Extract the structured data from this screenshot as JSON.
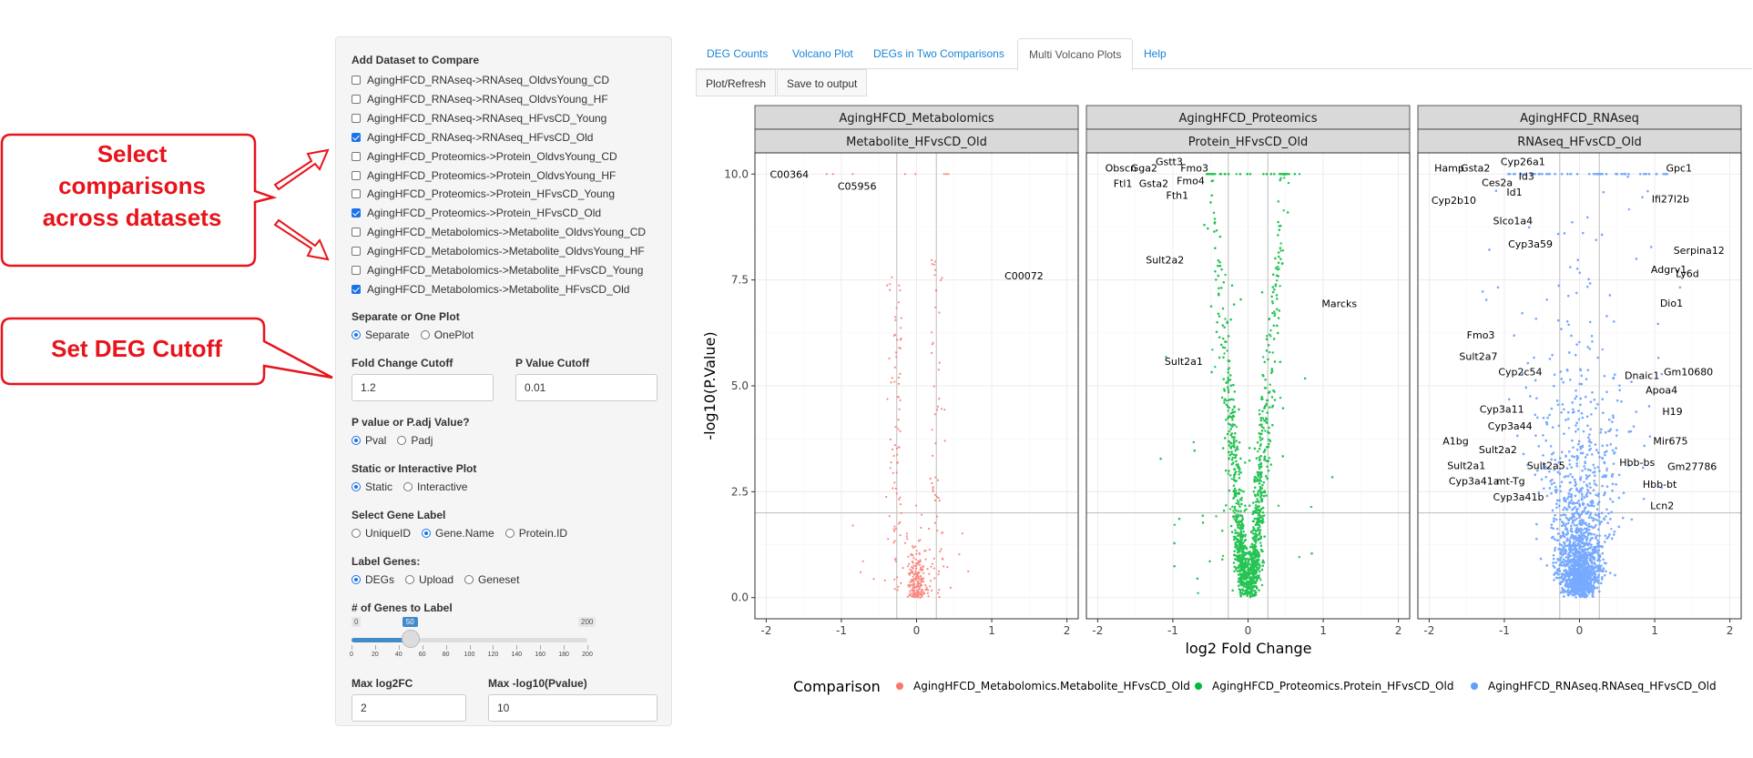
{
  "annotations": {
    "callout1_lines": [
      "Select",
      "comparisons",
      "across datasets"
    ],
    "callout2_text": "Set DEG Cutoff"
  },
  "sidebar": {
    "dataset_title": "Add Dataset to Compare",
    "datasets": [
      {
        "label": "AgingHFCD_RNAseq->RNAseq_OldvsYoung_CD",
        "checked": false
      },
      {
        "label": "AgingHFCD_RNAseq->RNAseq_OldvsYoung_HF",
        "checked": false
      },
      {
        "label": "AgingHFCD_RNAseq->RNAseq_HFvsCD_Young",
        "checked": false
      },
      {
        "label": "AgingHFCD_RNAseq->RNAseq_HFvsCD_Old",
        "checked": true
      },
      {
        "label": "AgingHFCD_Proteomics->Protein_OldvsYoung_CD",
        "checked": false
      },
      {
        "label": "AgingHFCD_Proteomics->Protein_OldvsYoung_HF",
        "checked": false
      },
      {
        "label": "AgingHFCD_Proteomics->Protein_HFvsCD_Young",
        "checked": false
      },
      {
        "label": "AgingHFCD_Proteomics->Protein_HFvsCD_Old",
        "checked": true
      },
      {
        "label": "AgingHFCD_Metabolomics->Metabolite_OldvsYoung_CD",
        "checked": false
      },
      {
        "label": "AgingHFCD_Metabolomics->Metabolite_OldvsYoung_HF",
        "checked": false
      },
      {
        "label": "AgingHFCD_Metabolomics->Metabolite_HFvsCD_Young",
        "checked": false
      },
      {
        "label": "AgingHFCD_Metabolomics->Metabolite_HFvsCD_Old",
        "checked": true
      }
    ],
    "separate_title": "Separate or One Plot",
    "separate_options": [
      "Separate",
      "OnePlot"
    ],
    "separate_selected": 0,
    "fc_label": "Fold Change Cutoff",
    "fc_value": "1.2",
    "pval_label": "P Value Cutoff",
    "pval_value": "0.01",
    "ptype_title": "P value or P.adj Value?",
    "ptype_options": [
      "Pval",
      "Padj"
    ],
    "ptype_selected": 0,
    "static_title": "Static or Interactive Plot",
    "static_options": [
      "Static",
      "Interactive"
    ],
    "static_selected": 0,
    "genelabel_title": "Select Gene Label",
    "genelabel_options": [
      "UniqueID",
      "Gene.Name",
      "Protein.ID"
    ],
    "genelabel_selected": 1,
    "labelgenes_title": "Label Genes:",
    "labelgenes_options": [
      "DEGs",
      "Upload",
      "Geneset"
    ],
    "labelgenes_selected": 0,
    "numgenes_title": "# of Genes to Label",
    "slider_min": "0",
    "slider_max": "200",
    "slider_value": 50,
    "slider_value_text": "50",
    "slider_ticks": [
      "0",
      "20",
      "40",
      "60",
      "80",
      "100",
      "120",
      "140",
      "160",
      "180",
      "200"
    ],
    "maxfc_label": "Max log2FC",
    "maxfc_value": "2",
    "maxp_label": "Max -log10(Pvalue)",
    "maxp_value": "10"
  },
  "tabs": [
    "DEG Counts",
    "Volcano Plot",
    "DEGs in Two Comparisons",
    "Multi Volcano Plots",
    "Help"
  ],
  "active_tab": 3,
  "buttons": {
    "refresh": "Plot/Refresh",
    "save": "Save to output"
  },
  "chart_data": {
    "type": "scatter",
    "xlabel": "log2 Fold Change",
    "ylabel": "-log10(P.Value)",
    "xlim": [
      -2.15,
      2.15
    ],
    "ylim": [
      -0.5,
      10.5
    ],
    "x_ticks": [
      "-2",
      "-1",
      "0",
      "1",
      "2"
    ],
    "y_ticks": [
      "0.0",
      "2.5",
      "5.0",
      "7.5",
      "10.0"
    ],
    "fc_cutoff_log2": 0.263,
    "p_cutoff_line": 2,
    "legend_title": "Comparison",
    "legend_position": "bottom",
    "panels": [
      {
        "dataset": "AgingHFCD_Metabolomics",
        "comparison": "Metabolite_HFvsCD_Old",
        "legend": "AgingHFCD_Metabolomics.Metabolite_HFvsCD_Old",
        "color": "#F8766D",
        "n_points": 380,
        "labels": [
          {
            "text": "C00364",
            "x": -1.95,
            "y": 10.0
          },
          {
            "text": "C05956",
            "x": -1.05,
            "y": 9.72
          },
          {
            "text": "C00072",
            "x": 1.17,
            "y": 7.6
          }
        ]
      },
      {
        "dataset": "AgingHFCD_Proteomics",
        "comparison": "Protein_HFvsCD_Old",
        "legend": "AgingHFCD_Proteomics.Protein_HFvsCD_Old",
        "color": "#00BA38",
        "n_points": 3500,
        "labels": [
          {
            "text": "Obscn",
            "x": -1.9,
            "y": 10.15
          },
          {
            "text": "Gga2",
            "x": -1.56,
            "y": 10.15
          },
          {
            "text": "Gstt3",
            "x": -1.23,
            "y": 10.3
          },
          {
            "text": "Fmo3",
            "x": -0.9,
            "y": 10.15
          },
          {
            "text": "Ftl1",
            "x": -1.79,
            "y": 9.78
          },
          {
            "text": "Gsta2",
            "x": -1.45,
            "y": 9.78
          },
          {
            "text": "Fmo4",
            "x": -0.95,
            "y": 9.85
          },
          {
            "text": "Fth1",
            "x": -1.09,
            "y": 9.5
          },
          {
            "text": "Sult2a2",
            "x": -1.36,
            "y": 7.98
          },
          {
            "text": "Marcks",
            "x": 0.98,
            "y": 6.94
          },
          {
            "text": "Sult2a1",
            "x": -1.11,
            "y": 5.58
          }
        ]
      },
      {
        "dataset": "AgingHFCD_RNAseq",
        "comparison": "RNAseq_HFvsCD_Old",
        "legend": "AgingHFCD_RNAseq.RNAseq_HFvsCD_Old",
        "color": "#619CFF",
        "n_points": 9000,
        "labels": [
          {
            "text": "Hamp",
            "x": -1.93,
            "y": 10.15
          },
          {
            "text": "Gsta2",
            "x": -1.58,
            "y": 10.15
          },
          {
            "text": "Cyp26a1",
            "x": -1.05,
            "y": 10.3
          },
          {
            "text": "Id3",
            "x": -0.81,
            "y": 9.95
          },
          {
            "text": "Ces2a",
            "x": -1.3,
            "y": 9.8
          },
          {
            "text": "Id1",
            "x": -0.97,
            "y": 9.58
          },
          {
            "text": "Cyp2b10",
            "x": -1.97,
            "y": 9.38
          },
          {
            "text": "Gpc1",
            "x": 1.15,
            "y": 10.15
          },
          {
            "text": "Ifi27l2b",
            "x": 0.96,
            "y": 9.42
          },
          {
            "text": "Slco1a4",
            "x": -1.15,
            "y": 8.9
          },
          {
            "text": "Cyp3a59",
            "x": -0.95,
            "y": 8.35
          },
          {
            "text": "Serpina12",
            "x": 1.25,
            "y": 8.2
          },
          {
            "text": "Adgrv1",
            "x": 0.95,
            "y": 7.75
          },
          {
            "text": "Ly6d",
            "x": 1.28,
            "y": 7.65
          },
          {
            "text": "Dio1",
            "x": 1.07,
            "y": 6.95
          },
          {
            "text": "Fmo3",
            "x": -1.5,
            "y": 6.2
          },
          {
            "text": "Sult2a7",
            "x": -1.6,
            "y": 5.7
          },
          {
            "text": "Cyp2c54",
            "x": -1.08,
            "y": 5.33
          },
          {
            "text": "Dnaic1",
            "x": 0.6,
            "y": 5.25
          },
          {
            "text": "Gm10680",
            "x": 1.12,
            "y": 5.33
          },
          {
            "text": "Apoa4",
            "x": 0.88,
            "y": 4.9
          },
          {
            "text": "H19",
            "x": 1.1,
            "y": 4.4
          },
          {
            "text": "Cyp3a11",
            "x": -1.33,
            "y": 4.45
          },
          {
            "text": "Cyp3a44",
            "x": -1.22,
            "y": 4.05
          },
          {
            "text": "A1bg",
            "x": -1.82,
            "y": 3.7
          },
          {
            "text": "Mir675",
            "x": 0.98,
            "y": 3.7
          },
          {
            "text": "Sult2a2",
            "x": -1.34,
            "y": 3.5
          },
          {
            "text": "Hbb-bs",
            "x": 0.53,
            "y": 3.2
          },
          {
            "text": "Gm27786",
            "x": 1.17,
            "y": 3.1
          },
          {
            "text": "Sult2a1",
            "x": -1.76,
            "y": 3.12
          },
          {
            "text": "Sult2a5",
            "x": -0.7,
            "y": 3.12
          },
          {
            "text": "Cyp3a41a",
            "x": -1.74,
            "y": 2.75
          },
          {
            "text": "mt-Tg",
            "x": -1.11,
            "y": 2.75
          },
          {
            "text": "Hbb-bt",
            "x": 0.84,
            "y": 2.68
          },
          {
            "text": "Cyp3a41b",
            "x": -1.15,
            "y": 2.38
          },
          {
            "text": "Lcn2",
            "x": 0.94,
            "y": 2.18
          }
        ]
      }
    ]
  }
}
